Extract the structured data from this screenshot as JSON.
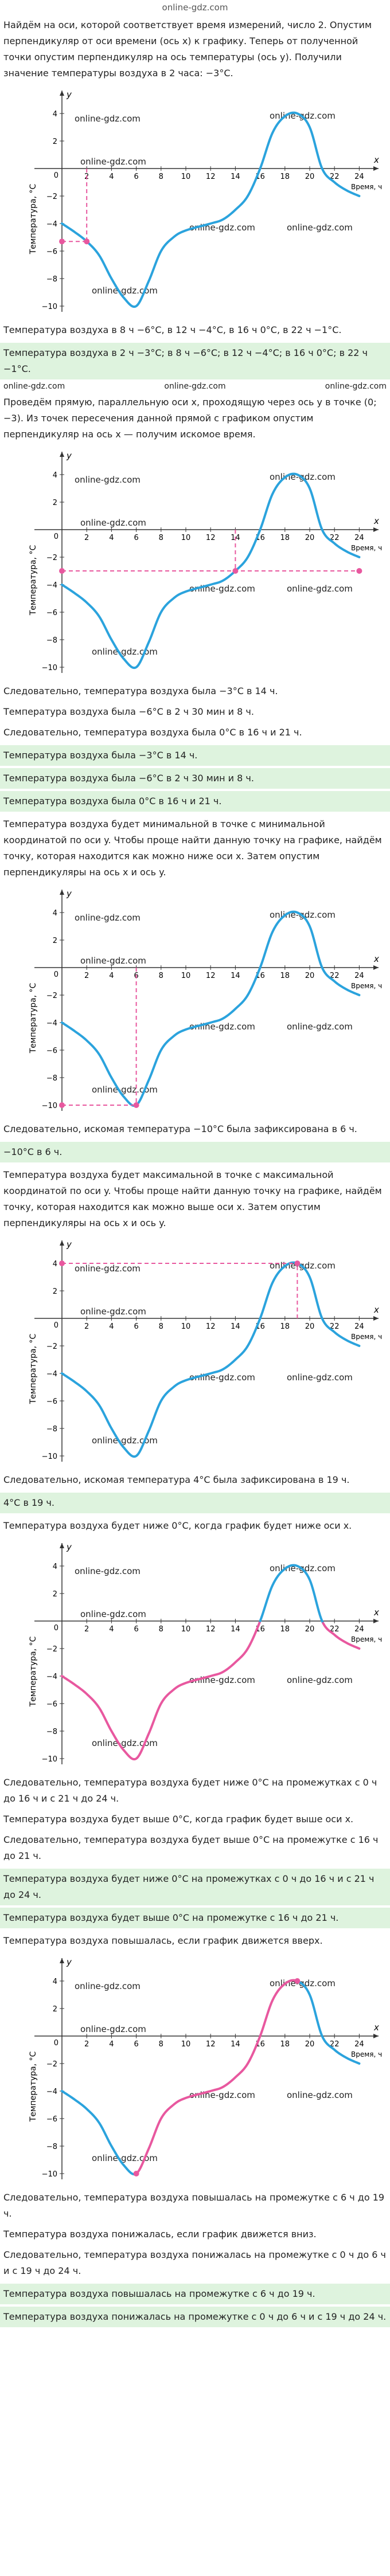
{
  "logo": "online-gdz.com",
  "watermark": "online-gdz.com",
  "graph": {
    "x_letter": "x",
    "y_letter": "y",
    "x_title": "Время, ч",
    "y_title": "Температура, °С",
    "origin": "0",
    "xticks": [
      "2",
      "4",
      "6",
      "8",
      "10",
      "12",
      "14",
      "16",
      "18",
      "20",
      "22",
      "24"
    ],
    "yticks": [
      "4",
      "2",
      "−2",
      "−4",
      "−6",
      "−8",
      "−10"
    ]
  },
  "steps": [
    "Найдём на оси, которой соответствует время измерений, число 2. Опустим перпендикуляр от оси времени (ось x) к графику. Теперь от полученной точки опустим перпендикуляр на ось температуры (ось y). Получили значение температуры воздуха в 2 часа: −3°C.",
    "Температура воздуха в 8 ч −6°C, в 12 ч −4°C, в 16 ч 0°C, в 22 ч −1°C.",
    "Температура воздуха в 2 ч −3°C; в 8 ч −6°C; в 12 ч −4°C; в 16 ч 0°C; в 22 ч −1°C.",
    "Проведём прямую, параллельную оси x, проходящую через ось y в точке (0; −3). Из точек пересечения данной прямой с графиком опустим перпендикуляр на ось x — получим искомое время.",
    "Следовательно, температура воздуха была −3°C в 14 ч.",
    "Температура воздуха была −6°C в 2 ч 30 мин и 8 ч.",
    "Следовательно, температура воздуха была 0°C в 16 ч и 21 ч.",
    "Температура воздуха была −3°C в 14 ч.",
    "Температура воздуха была −6°C в 2 ч 30 мин и 8 ч.",
    "Температура воздуха была 0°C в 16 ч и 21 ч.",
    "Температура воздуха будет минимальной в точке с минимальной координатой по оси y. Чтобы проще найти данную точку на графике, найдём точку, которая находится как можно ниже оси x. Затем опустим перпендикуляры на ось x и ось y.",
    "Следовательно, искомая температура −10°C была зафиксирована в 6 ч.",
    "−10°C в 6 ч.",
    "Температура воздуха будет максимальной в точке с максимальной координатой по оси y. Чтобы проще найти данную точку на графике, найдём точку, которая находится как можно выше оси x. Затем опустим перпендикуляры на ось x и ось y.",
    "Следовательно, искомая температура 4°C была зафиксирована в 19 ч.",
    "4°C в 19 ч.",
    "Температура воздуха будет ниже 0°C, когда график будет ниже оси x.",
    "Следовательно, температура воздуха будет ниже 0°C на промежутках с 0 ч до 16 ч и с 21 ч до 24 ч.",
    "Температура воздуха будет выше 0°C, когда график будет выше оси x.",
    "Следовательно, температура воздуха будет выше 0°C на промежутке с 16 ч до 21 ч.",
    "Температура воздуха будет ниже 0°C на промежутках с 0 ч до 16 ч и с 21 ч до 24 ч.",
    "Температура воздуха будет выше 0°C на промежутке с 16 ч до 21 ч.",
    "Температура воздуха повышалась, если график движется вверх.",
    "Следовательно, температура воздуха повышалась на промежутке с 6 ч до 19 ч.",
    "Температура воздуха понижалась, если график движется вниз.",
    "Следовательно, температура воздуха понижалась на промежутке с 0 ч до 6 ч и с 19 ч до 24 ч.",
    "Температура воздуха повышалась на промежутке с 6 ч до 19 ч.",
    "Температура воздуха понижалась на промежутке с 0 ч до 6 ч и с 19 ч до 24 ч."
  ]
}
